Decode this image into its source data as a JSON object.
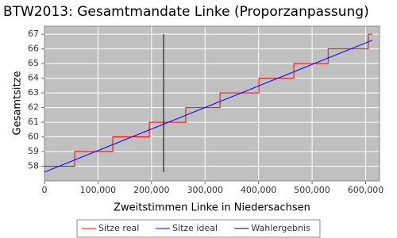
{
  "chart_data": {
    "type": "line",
    "title": "BTW2013: Gesamtmandate Linke (Proporzanpassung)",
    "x_label": "Zweitstimmen Linke in Niedersachsen",
    "y_label": "Gesamtsitze",
    "xlim": [
      0,
      626000
    ],
    "ylim": [
      57.0,
      67.55
    ],
    "xticks": [
      0,
      {
        "value": 100000,
        "label": "100,000"
      },
      {
        "value": 200000,
        "label": "200,000"
      },
      {
        "value": 300000,
        "label": "300,000"
      },
      {
        "value": 400000,
        "label": "400,000"
      },
      {
        "value": 500000,
        "label": "500,000"
      },
      {
        "value": 600000,
        "label": "600,000"
      }
    ],
    "yticks": [
      58,
      59,
      60,
      61,
      62,
      63,
      64,
      65,
      66,
      67
    ],
    "grid": true,
    "legend": "bottom",
    "series": [
      {
        "name": "Sitze real",
        "color": "#ff0000",
        "x": [
          0,
          56400,
          56400,
          127600,
          127600,
          196000,
          196000,
          264000,
          264000,
          328000,
          328000,
          400600,
          400600,
          466000,
          466000,
          530000,
          530000,
          605000,
          605000,
          613000
        ],
        "values": [
          58,
          58,
          59,
          59,
          60,
          60,
          61,
          61,
          62,
          62,
          63,
          63,
          64,
          64,
          65,
          65,
          66,
          66,
          67,
          67
        ]
      },
      {
        "name": "Sitze ideal",
        "color": "#0000ff",
        "x": [
          0,
          613000
        ],
        "values": [
          57.6,
          66.6
        ]
      },
      {
        "name": "Wahlergebnis",
        "color": "#000000",
        "x": [
          222600,
          222600
        ],
        "values": [
          67,
          57.6
        ]
      }
    ]
  }
}
